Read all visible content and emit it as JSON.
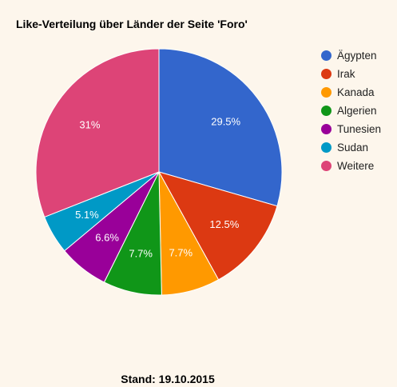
{
  "chart_data": {
    "type": "pie",
    "title": "Like-Verteilung über Länder der Seite 'Foro'",
    "categories": [
      "Ägypten",
      "Irak",
      "Kanada",
      "Algerien",
      "Tunesien",
      "Sudan",
      "Weitere"
    ],
    "values": [
      29.5,
      12.5,
      7.7,
      7.7,
      6.6,
      5.1,
      31
    ],
    "data_labels": [
      "29.5%",
      "12.5%",
      "7.7%",
      "7.7%",
      "6.6%",
      "5.1%",
      "31%"
    ],
    "colors": [
      "#3366cc",
      "#dc3912",
      "#ff9900",
      "#109618",
      "#990099",
      "#0099c6",
      "#dd4477"
    ],
    "legend_position": "right"
  },
  "footer": "Stand: 19.10.2015"
}
